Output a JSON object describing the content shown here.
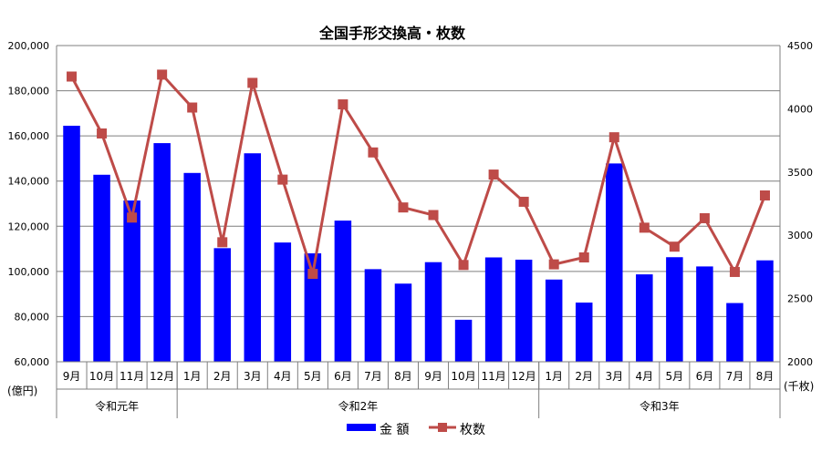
{
  "chart_data": {
    "type": "bar",
    "title": "全国手形交換高・枚数",
    "categories": [
      "9月",
      "10月",
      "11月",
      "12月",
      "1月",
      "2月",
      "3月",
      "4月",
      "5月",
      "6月",
      "7月",
      "8月",
      "9月",
      "10月",
      "11月",
      "12月",
      "1月",
      "2月",
      "3月",
      "4月",
      "5月",
      "6月",
      "7月",
      "8月"
    ],
    "groups": [
      {
        "label": "令和元年",
        "count": 4
      },
      {
        "label": "令和2年",
        "count": 12
      },
      {
        "label": "令和3年",
        "count": 8
      }
    ],
    "series": [
      {
        "name": "金 額",
        "type": "bar",
        "axis": "left",
        "color": "#0000ff",
        "values": [
          164500,
          142800,
          131400,
          156800,
          143600,
          110300,
          152300,
          112800,
          108000,
          122500,
          101000,
          94600,
          104100,
          78600,
          106200,
          105200,
          96400,
          86200,
          147800,
          98700,
          106300,
          102200,
          86000,
          104900
        ]
      },
      {
        "name": "枚数",
        "type": "line",
        "axis": "right",
        "color": "#be4b48",
        "values": [
          4255,
          3805,
          3140,
          4270,
          4010,
          2945,
          4205,
          3440,
          2695,
          4035,
          3655,
          3220,
          3160,
          2765,
          3480,
          3265,
          2770,
          2825,
          3775,
          3060,
          2910,
          3135,
          2710,
          3315
        ]
      }
    ],
    "y_left": {
      "min": 60000,
      "max": 200000,
      "step": 20000,
      "unit": "(億円)",
      "tick_labels": [
        "60,000",
        "80,000",
        "100,000",
        "120,000",
        "140,000",
        "160,000",
        "180,000",
        "200,000"
      ]
    },
    "y_right": {
      "min": 2000,
      "max": 4500,
      "step": 500,
      "unit": "(千枚)",
      "tick_labels": [
        "2000",
        "2500",
        "3000",
        "3500",
        "4000",
        "4500"
      ]
    },
    "grid": true,
    "legend_position": "bottom-center"
  }
}
